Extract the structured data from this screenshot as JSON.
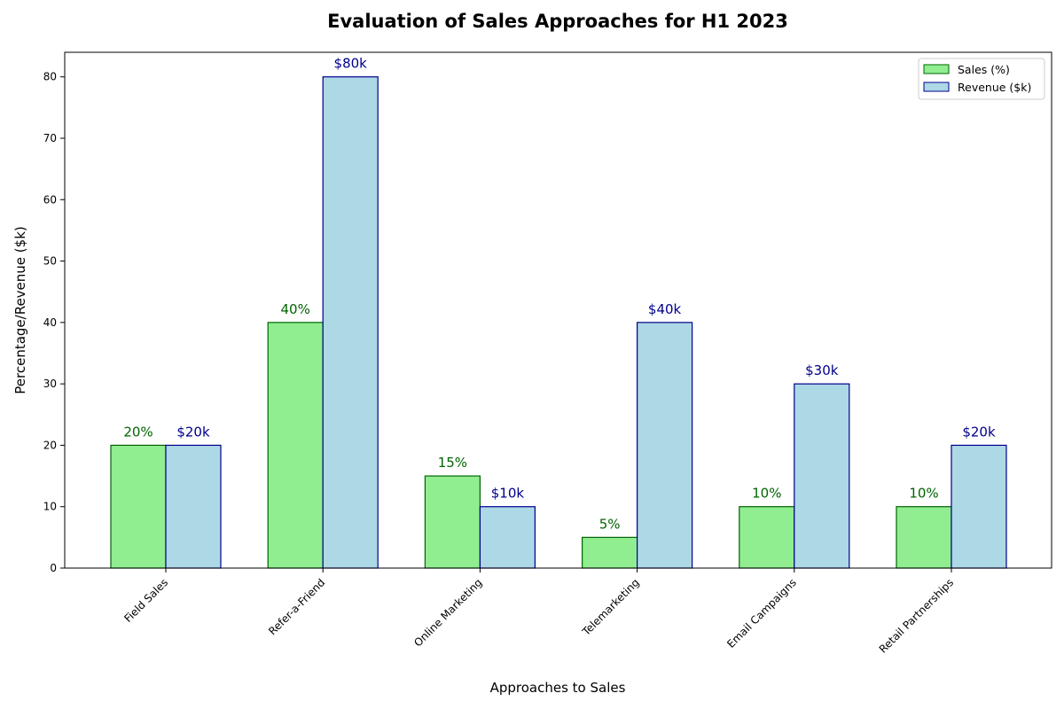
{
  "chart_data": {
    "type": "bar",
    "title": "Evaluation of Sales Approaches for H1 2023",
    "xlabel": "Approaches to Sales",
    "ylabel": "Percentage/Revenue ($k)",
    "categories": [
      "Field Sales",
      "Refer-a-Friend",
      "Online Marketing",
      "Telemarketing",
      "Email Campaigns",
      "Retail Partnerships"
    ],
    "series": [
      {
        "name": "Sales (%)",
        "values": [
          20,
          40,
          15,
          5,
          10,
          10
        ],
        "labels": [
          "20%",
          "40%",
          "15%",
          "5%",
          "10%",
          "10%"
        ],
        "fill": "#90ee90",
        "edge": "#006400",
        "label_color": "#006400"
      },
      {
        "name": "Revenue ($k)",
        "values": [
          20,
          80,
          10,
          40,
          30,
          20
        ],
        "labels": [
          "$20k",
          "$80k",
          "$10k",
          "$40k",
          "$30k",
          "$20k"
        ],
        "fill": "#add8e6",
        "edge": "#00008b",
        "label_color": "#00008b"
      }
    ],
    "ylim": [
      0,
      84
    ],
    "yticks": [
      0,
      10,
      20,
      30,
      40,
      50,
      60,
      70,
      80
    ],
    "grid": false,
    "legend_position": "top-right"
  }
}
